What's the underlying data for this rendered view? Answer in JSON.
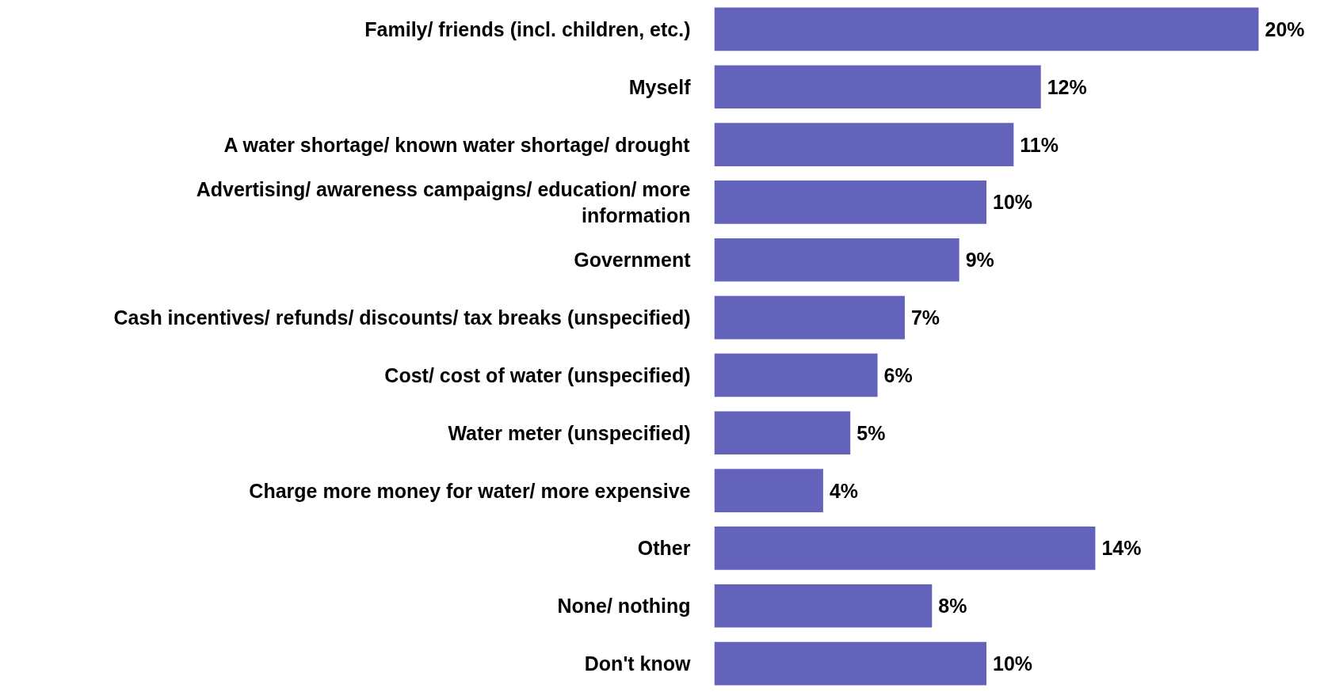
{
  "chart_data": {
    "type": "bar",
    "orientation": "horizontal",
    "color": "#6363bb",
    "categories": [
      "Family/ friends (incl. children, etc.)",
      "Myself",
      "A water shortage/ known water shortage/ drought",
      "Advertising/ awareness campaigns/ education/ more\ninformation",
      "Government",
      "Cash incentives/ refunds/ discounts/ tax breaks (unspecified)",
      "Cost/ cost of water (unspecified)",
      "Water meter (unspecified)",
      "Charge more money for water/ more expensive",
      "Other",
      "None/ nothing",
      "Don't know"
    ],
    "values": [
      20,
      12,
      11,
      10,
      9,
      7,
      6,
      5,
      4,
      14,
      8,
      10
    ],
    "value_labels": [
      "20%",
      "12%",
      "11%",
      "10%",
      "9%",
      "7%",
      "6%",
      "5%",
      "4%",
      "14%",
      "8%",
      "10%"
    ],
    "grid": false,
    "tick_labels": "y"
  }
}
